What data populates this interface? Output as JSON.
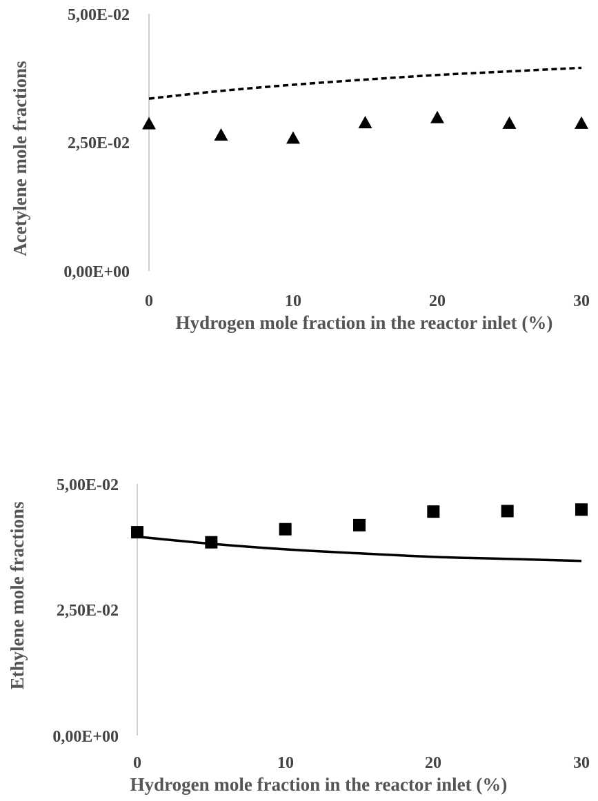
{
  "chart_data": [
    {
      "type": "line",
      "xlabel": "Hydrogen mole fraction in the reactor inlet (%)",
      "ylabel": "Acetylene mole fractions",
      "xlim": [
        0,
        30
      ],
      "ylim": [
        0,
        0.05
      ],
      "x_ticks": [
        "0",
        "10",
        "20",
        "30"
      ],
      "y_ticks": [
        "0,00E+00",
        "2,50E-02",
        "5,00E-02"
      ],
      "grid": false,
      "legend": "none",
      "series": [
        {
          "style": "dashed-line",
          "color": "#000000",
          "x": [
            0,
            5,
            10,
            15,
            20,
            25,
            30
          ],
          "y": [
            0.0335,
            0.035,
            0.0362,
            0.0372,
            0.0381,
            0.0388,
            0.0395
          ]
        },
        {
          "style": "triangle-markers",
          "color": "#000000",
          "x": [
            0,
            5,
            10,
            15,
            20,
            25,
            30
          ],
          "y": [
            0.0286,
            0.0264,
            0.0258,
            0.0288,
            0.0298,
            0.0287,
            0.0287
          ]
        }
      ]
    },
    {
      "type": "line",
      "xlabel": "Hydrogen mole fraction in the reactor inlet (%)",
      "ylabel": "Ethylene mole fractions",
      "xlim": [
        0,
        30
      ],
      "ylim": [
        0,
        0.05
      ],
      "x_ticks": [
        "0",
        "10",
        "20",
        "30"
      ],
      "y_ticks": [
        "0,00E+00",
        "2,50E-02",
        "5,00E-02"
      ],
      "grid": false,
      "legend": "none",
      "series": [
        {
          "style": "solid-line",
          "color": "#000000",
          "x": [
            0,
            5,
            10,
            15,
            20,
            25,
            30
          ],
          "y": [
            0.0395,
            0.0381,
            0.037,
            0.0362,
            0.0355,
            0.0351,
            0.0347
          ]
        },
        {
          "style": "square-markers",
          "color": "#000000",
          "x": [
            0,
            5,
            10,
            15,
            20,
            25,
            30
          ],
          "y": [
            0.0404,
            0.0384,
            0.041,
            0.0418,
            0.0445,
            0.0446,
            0.0449
          ]
        }
      ]
    }
  ]
}
